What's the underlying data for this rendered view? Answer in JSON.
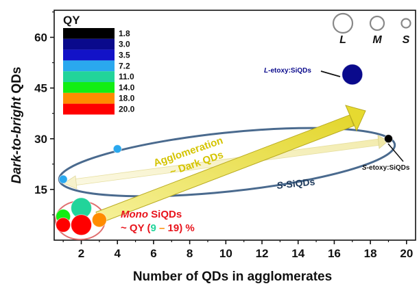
{
  "chart_data": {
    "type": "scatter",
    "xlabel": "Number of QDs in agglomerates",
    "ylabel_parts": [
      "Dark-to-bright",
      " QDs"
    ],
    "xlim": [
      0.5,
      20.5
    ],
    "ylim": [
      0,
      68
    ],
    "xticks": [
      "2",
      "4",
      "6",
      "8",
      "10",
      "12",
      "14",
      "16",
      "18",
      "20"
    ],
    "yticks": [
      "15",
      "30",
      "45",
      "60"
    ],
    "qy_legend": {
      "title": "QY",
      "entries": [
        {
          "label": "1.8",
          "color": "#000000"
        },
        {
          "label": "3.0",
          "color": "#0a0a8c"
        },
        {
          "label": "3.5",
          "color": "#1212c8"
        },
        {
          "label": "7.2",
          "color": "#2aa8ee"
        },
        {
          "label": "11.0",
          "color": "#22d49a"
        },
        {
          "label": "14.0",
          "color": "#12ee12"
        },
        {
          "label": "18.0",
          "color": "#ff8c00"
        },
        {
          "label": "20.0",
          "color": "#ff0000"
        }
      ]
    },
    "size_legend": [
      "L",
      "M",
      "S"
    ],
    "points": [
      {
        "x": 17,
        "y": 49,
        "size": "L",
        "color": "#0a0a8c"
      },
      {
        "x": 19,
        "y": 30,
        "size": "S",
        "color": "#000000"
      },
      {
        "x": 4,
        "y": 27,
        "size": "S",
        "color": "#2aa8ee"
      },
      {
        "x": 1,
        "y": 18,
        "size": "S",
        "color": "#2aa8ee"
      },
      {
        "x": 2,
        "y": 9.5,
        "size": "L",
        "color": "#22d49a"
      },
      {
        "x": 1,
        "y": 7,
        "size": "M",
        "color": "#12ee12"
      },
      {
        "x": 1,
        "y": 4.5,
        "size": "M",
        "color": "#ff0000"
      },
      {
        "x": 2,
        "y": 4.5,
        "size": "L",
        "color": "#ff0000"
      },
      {
        "x": 3,
        "y": 6,
        "size": "M",
        "color": "#ff8c00"
      }
    ],
    "annotations": {
      "l_etoxy": [
        "L",
        "-etoxy:SiQDs"
      ],
      "s_etoxy": [
        "S",
        "-etoxy:SiQDs"
      ],
      "s_siqds": [
        "S",
        "-SiQDs"
      ],
      "agglomeration_1": "Agglomeration",
      "agglomeration_2": "~ Dark QDs",
      "mono_1": [
        "Mono",
        " SiQDs"
      ],
      "mono_2": [
        "~ QY (",
        "9",
        " – ",
        "19",
        ") %"
      ]
    },
    "colors": {
      "mono": "#e8141c",
      "agglomeration": "#d4c400",
      "s_siqds": "#1e3a5c",
      "l_etoxy": "#0a0a8c",
      "ellipse_stroke": "#4a6a8e",
      "mono_ellipse": "#e07070",
      "range_low": "#22d49a",
      "range_high": "#ff8c00"
    }
  }
}
